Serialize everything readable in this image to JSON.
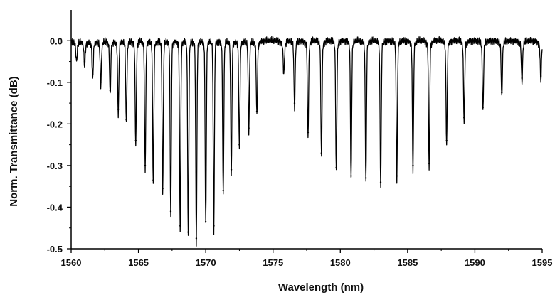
{
  "chart_data": {
    "type": "line",
    "title": "",
    "xlabel": "Wavelength (nm)",
    "ylabel": "Norm. Transmittance (dB)",
    "xlim": [
      1560,
      1595
    ],
    "ylim": [
      -0.5,
      0.05
    ],
    "x_ticks": [
      "1560",
      "1565",
      "1570",
      "1575",
      "1580",
      "1585",
      "1590",
      "1595"
    ],
    "y_ticks": [
      "0.0",
      "-0.1",
      "-0.2",
      "-0.3",
      "-0.4",
      "-0.5"
    ],
    "grid": false,
    "legend": "none",
    "line_color": "#000000",
    "series": [
      {
        "baseline": 0.0,
        "dips": [
          {
            "x": 1560.4,
            "y": -0.04
          },
          {
            "x": 1561.0,
            "y": -0.05
          },
          {
            "x": 1561.6,
            "y": -0.08
          },
          {
            "x": 1562.2,
            "y": -0.1
          },
          {
            "x": 1562.9,
            "y": -0.12
          },
          {
            "x": 1563.5,
            "y": -0.165
          },
          {
            "x": 1564.1,
            "y": -0.19
          },
          {
            "x": 1564.8,
            "y": -0.24
          },
          {
            "x": 1565.5,
            "y": -0.3
          },
          {
            "x": 1566.1,
            "y": -0.335
          },
          {
            "x": 1566.8,
            "y": -0.355
          },
          {
            "x": 1567.4,
            "y": -0.41
          },
          {
            "x": 1568.1,
            "y": -0.445
          },
          {
            "x": 1568.7,
            "y": -0.46
          },
          {
            "x": 1569.3,
            "y": -0.475
          },
          {
            "x": 1570.0,
            "y": -0.435
          },
          {
            "x": 1570.6,
            "y": -0.445
          },
          {
            "x": 1571.3,
            "y": -0.36
          },
          {
            "x": 1571.9,
            "y": -0.31
          },
          {
            "x": 1572.5,
            "y": -0.25
          },
          {
            "x": 1573.2,
            "y": -0.21
          },
          {
            "x": 1573.8,
            "y": -0.17
          },
          {
            "x": 1575.8,
            "y": -0.07
          },
          {
            "x": 1576.6,
            "y": -0.15
          },
          {
            "x": 1577.6,
            "y": -0.22
          },
          {
            "x": 1578.6,
            "y": -0.27
          },
          {
            "x": 1579.7,
            "y": -0.305
          },
          {
            "x": 1580.8,
            "y": -0.325
          },
          {
            "x": 1581.9,
            "y": -0.33
          },
          {
            "x": 1583.0,
            "y": -0.34
          },
          {
            "x": 1584.2,
            "y": -0.325
          },
          {
            "x": 1585.4,
            "y": -0.3
          },
          {
            "x": 1586.6,
            "y": -0.295
          },
          {
            "x": 1587.9,
            "y": -0.24
          },
          {
            "x": 1589.2,
            "y": -0.185
          },
          {
            "x": 1590.6,
            "y": -0.16
          },
          {
            "x": 1592.0,
            "y": -0.125
          },
          {
            "x": 1593.5,
            "y": -0.09
          },
          {
            "x": 1594.9,
            "y": -0.085
          }
        ]
      }
    ]
  }
}
